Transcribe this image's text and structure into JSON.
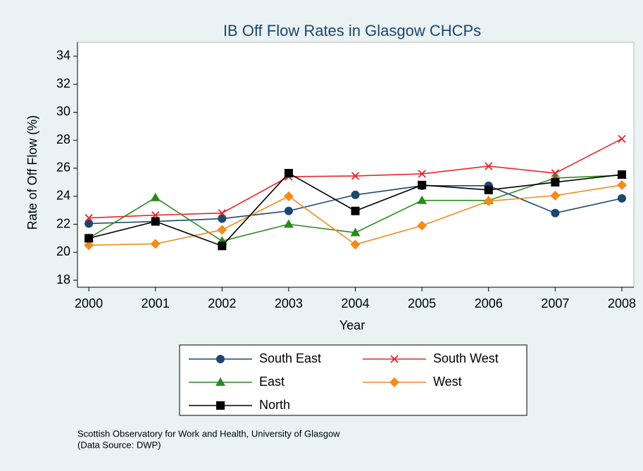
{
  "chart_data": {
    "type": "line",
    "title": "IB Off Flow Rates in Glasgow CHCPs",
    "y_label": "Rate of Off Flow (%)",
    "x_label": "Year",
    "notes": [
      "Scottish Observatory for Work and Health, University of Glasgow",
      "(Data Source: DWP)"
    ],
    "x": [
      2000,
      2001,
      2002,
      2003,
      2004,
      2005,
      2006,
      2007,
      2008
    ],
    "xlim": [
      1999.83,
      2008.18
    ],
    "xticks": [
      2000,
      2001,
      2002,
      2003,
      2004,
      2005,
      2006,
      2007,
      2008
    ],
    "ylim": [
      17.5,
      35
    ],
    "yticks": [
      18,
      20,
      22,
      24,
      26,
      28,
      30,
      32,
      34
    ],
    "grid": false,
    "series": [
      {
        "name": "South East",
        "color": "#1a476f",
        "marker": "circle",
        "values": [
          22.05,
          22.2,
          22.4,
          22.95,
          24.1,
          24.75,
          24.75,
          22.8,
          23.85
        ]
      },
      {
        "name": "South West",
        "color": "#e8262b",
        "marker": "cross",
        "values": [
          22.45,
          22.65,
          22.8,
          25.4,
          25.45,
          25.6,
          26.15,
          25.65,
          28.1
        ]
      },
      {
        "name": "East",
        "color": "#2a8a1e",
        "marker": "triangle",
        "values": [
          21.0,
          23.9,
          20.8,
          22.0,
          21.4,
          23.7,
          23.7,
          25.3,
          25.5
        ]
      },
      {
        "name": "West",
        "color": "#f28c1c",
        "marker": "diamond",
        "values": [
          20.5,
          20.6,
          21.6,
          24.0,
          20.55,
          21.9,
          23.65,
          24.05,
          24.8
        ]
      },
      {
        "name": "North",
        "color": "#000000",
        "marker": "square",
        "values": [
          21.0,
          22.2,
          20.45,
          25.65,
          22.95,
          24.8,
          24.45,
          25.0,
          25.55
        ]
      }
    ]
  }
}
